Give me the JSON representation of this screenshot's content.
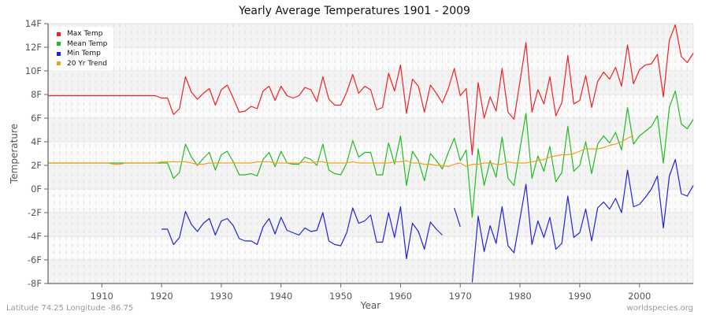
{
  "chart": {
    "title": "Yearly Average Temperatures 1901 - 2009",
    "footer_left": "Latitude 74.25 Longitude -86.75",
    "footer_right": "worldspecies.org",
    "legend": [
      {
        "label": "Max Temp",
        "color": "#ee2222"
      },
      {
        "label": "Mean Temp",
        "color": "#22bb22"
      },
      {
        "label": "Min Temp",
        "color": "#2222dd"
      },
      {
        "label": "20 Yr Trend",
        "color": "#f59e1b"
      }
    ]
  },
  "chart_data": {
    "type": "line",
    "title": "Yearly Average Temperatures 1901 - 2009",
    "xlabel": "Year",
    "ylabel": "Temperature",
    "xlim": [
      1901,
      2009
    ],
    "ylim": [
      -8,
      14
    ],
    "x_ticks": [
      1910,
      1920,
      1930,
      1940,
      1950,
      1960,
      1970,
      1980,
      1990,
      2000
    ],
    "y_ticks": [
      "14F",
      "12F",
      "10F",
      "8F",
      "6F",
      "4F",
      "2F",
      "0F",
      "-2F",
      "-4F",
      "-6F",
      "-8F"
    ],
    "grid": true,
    "legend_position": "top-left",
    "x_start": 1901,
    "series": [
      {
        "name": "Max Temp",
        "color": "#ee2222",
        "values": [
          7.9,
          7.9,
          7.9,
          7.9,
          7.9,
          7.9,
          7.9,
          7.9,
          7.9,
          7.9,
          7.9,
          7.9,
          7.9,
          7.9,
          7.9,
          7.9,
          7.9,
          7.9,
          7.9,
          7.7,
          7.7,
          6.3,
          6.8,
          9.5,
          8.2,
          7.6,
          8.1,
          8.5,
          7.1,
          8.4,
          8.8,
          7.7,
          6.5,
          6.6,
          7.0,
          6.8,
          8.3,
          8.7,
          7.5,
          8.7,
          7.9,
          7.7,
          7.9,
          8.6,
          8.4,
          7.4,
          9.5,
          7.6,
          7.1,
          7.1,
          8.2,
          9.7,
          8.1,
          8.7,
          8.4,
          6.7,
          6.9,
          9.8,
          8.3,
          10.5,
          6.4,
          9.3,
          8.7,
          6.5,
          8.8,
          8.1,
          7.3,
          8.5,
          10.2,
          7.9,
          8.5,
          2.9,
          9.0,
          6.0,
          7.8,
          6.6,
          10.2,
          6.5,
          5.9,
          9.1,
          12.4,
          6.5,
          8.4,
          7.2,
          9.5,
          6.2,
          7.3,
          11.3,
          7.2,
          7.5,
          9.6,
          6.9,
          9.1,
          9.9,
          9.3,
          10.3,
          8.7,
          12.2,
          8.9,
          10.1,
          10.5,
          10.6,
          11.4,
          7.8,
          12.6,
          13.9,
          11.2,
          10.7,
          11.5
        ]
      },
      {
        "name": "Mean Temp",
        "color": "#22bb22",
        "values": [
          2.2,
          2.2,
          2.2,
          2.2,
          2.2,
          2.2,
          2.2,
          2.2,
          2.2,
          2.2,
          2.2,
          2.2,
          2.2,
          2.2,
          2.2,
          2.2,
          2.2,
          2.2,
          2.2,
          2.2,
          2.2,
          0.9,
          1.4,
          3.8,
          2.7,
          2.0,
          2.6,
          3.1,
          1.6,
          2.9,
          3.2,
          2.3,
          1.2,
          1.2,
          1.3,
          1.1,
          2.5,
          3.1,
          1.9,
          3.2,
          2.2,
          2.1,
          2.1,
          2.7,
          2.5,
          2.0,
          3.8,
          1.6,
          1.3,
          1.2,
          2.2,
          4.1,
          2.7,
          3.1,
          3.1,
          1.2,
          1.2,
          3.9,
          2.1,
          4.5,
          0.3,
          3.2,
          2.4,
          0.7,
          3.0,
          2.4,
          1.7,
          3.1,
          4.3,
          2.4,
          3.3,
          -2.4,
          3.4,
          0.3,
          2.4,
          1.0,
          4.4,
          0.9,
          0.3,
          3.4,
          6.4,
          0.9,
          2.8,
          1.5,
          3.6,
          0.6,
          1.4,
          5.3,
          1.5,
          2.0,
          4.0,
          1.3,
          3.8,
          4.5,
          3.9,
          4.8,
          3.3,
          6.9,
          3.8,
          4.5,
          4.9,
          5.3,
          6.2,
          2.2,
          6.9,
          8.3,
          5.5,
          5.1,
          5.9
        ]
      },
      {
        "name": "Min Temp",
        "color": "#2222dd",
        "values": [
          null,
          null,
          null,
          null,
          null,
          null,
          null,
          null,
          null,
          null,
          null,
          null,
          null,
          null,
          null,
          null,
          null,
          null,
          null,
          -3.4,
          -3.4,
          -4.7,
          -4.1,
          -1.9,
          -3.0,
          -3.6,
          -2.9,
          -2.5,
          -3.9,
          -2.7,
          -2.5,
          -3.1,
          -4.2,
          -4.4,
          -4.4,
          -4.7,
          -3.2,
          -2.5,
          -3.8,
          -2.4,
          -3.5,
          -3.7,
          -3.9,
          -3.3,
          -3.6,
          -3.5,
          -2.0,
          -4.4,
          -4.7,
          -4.8,
          -3.7,
          -1.6,
          -2.9,
          -2.7,
          -2.2,
          -4.5,
          -4.5,
          -2.0,
          -4.1,
          -1.5,
          -5.9,
          -2.9,
          -3.6,
          -5.1,
          -2.8,
          -3.4,
          -3.9,
          null,
          -1.6,
          -3.2,
          null,
          -7.9,
          -2.3,
          -5.3,
          -3.1,
          -4.6,
          -1.5,
          -4.8,
          -5.4,
          -2.5,
          0.4,
          -4.7,
          -2.7,
          -4.1,
          -2.4,
          -5.1,
          -4.6,
          -0.6,
          -4.1,
          -3.7,
          -1.7,
          -4.4,
          -1.6,
          -1.1,
          -1.7,
          -0.8,
          -2.0,
          1.6,
          -1.5,
          -1.3,
          -0.7,
          0.0,
          1.1,
          -3.3,
          1.1,
          2.5,
          -0.4,
          -0.6,
          0.3
        ]
      },
      {
        "name": "20 Yr Trend",
        "color": "#f59e1b",
        "values": [
          2.2,
          2.2,
          2.2,
          2.2,
          2.2,
          2.2,
          2.2,
          2.2,
          2.2,
          2.2,
          2.2,
          2.1,
          2.1,
          2.2,
          2.2,
          2.2,
          2.2,
          2.2,
          2.2,
          2.3,
          2.3,
          2.3,
          2.3,
          2.3,
          2.2,
          2.1,
          2.1,
          2.2,
          2.2,
          2.2,
          2.2,
          2.2,
          2.2,
          2.2,
          2.2,
          2.3,
          2.3,
          2.3,
          2.2,
          2.2,
          2.2,
          2.2,
          2.2,
          2.3,
          2.2,
          2.3,
          2.3,
          2.2,
          2.2,
          2.2,
          2.2,
          2.3,
          2.2,
          2.2,
          2.2,
          2.2,
          2.2,
          2.2,
          2.3,
          2.3,
          2.4,
          2.2,
          2.2,
          2.1,
          2.1,
          2.0,
          2.0,
          1.9,
          2.1,
          2.2,
          1.9,
          2.1,
          2.1,
          2.2,
          2.2,
          2.1,
          2.1,
          2.3,
          2.2,
          2.2,
          2.2,
          2.3,
          2.4,
          2.5,
          2.7,
          2.8,
          2.9,
          2.9,
          3.0,
          3.2,
          3.4,
          3.4,
          3.4,
          3.5,
          3.7,
          3.8,
          4.0,
          4.3,
          4.5,
          null,
          null,
          null,
          null,
          null,
          null,
          null,
          null,
          null,
          null
        ]
      }
    ]
  }
}
